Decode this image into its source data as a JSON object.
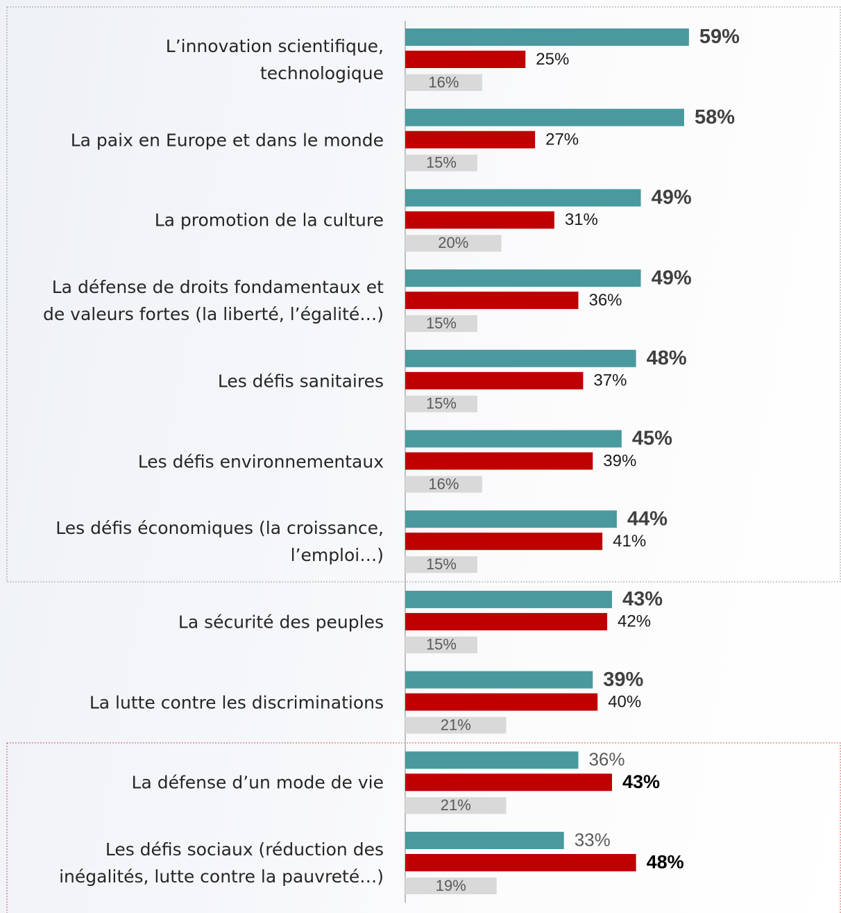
{
  "chart_data": {
    "type": "bar",
    "categories": [
      "L’innovation scientifique,\ntechnologique",
      "La paix en Europe et dans le monde",
      "La promotion de la culture",
      "La défense de droits fondamentaux et\nde valeurs fortes (la liberté, l’égalité…)",
      "Les défis sanitaires",
      "Les défis environnementaux",
      "Les défis économiques (la croissance,\nl’emploi…)",
      "La sécurité des peuples",
      "La lutte contre les discriminations",
      "La défense d’un mode de vie",
      "Les défis sociaux (réduction des\ninégalités, lutte contre la pauvreté…)"
    ],
    "series": [
      {
        "color": "#4a999f",
        "values": [
          59,
          58,
          49,
          49,
          48,
          45,
          44,
          43,
          39,
          36,
          33
        ],
        "value_labels": [
          "59%",
          "58%",
          "49%",
          "49%",
          "48%",
          "45%",
          "44%",
          "43%",
          "39%",
          "36%",
          "33%"
        ]
      },
      {
        "color": "#c00000",
        "values": [
          25,
          27,
          31,
          36,
          37,
          39,
          41,
          42,
          40,
          43,
          48
        ],
        "value_labels": [
          "25%",
          "27%",
          "31%",
          "36%",
          "37%",
          "39%",
          "41%",
          "42%",
          "40%",
          "43%",
          "48%"
        ]
      },
      {
        "color": "#d9d9d9",
        "values": [
          16,
          15,
          20,
          15,
          15,
          16,
          15,
          15,
          21,
          21,
          19
        ],
        "value_labels": [
          "16%",
          "15%",
          "20%",
          "15%",
          "15%",
          "16%",
          "15%",
          "15%",
          "21%",
          "21%",
          "19%"
        ]
      }
    ],
    "highlight_series": [
      0,
      0,
      0,
      0,
      0,
      0,
      0,
      0,
      0,
      1,
      1
    ]
  }
}
